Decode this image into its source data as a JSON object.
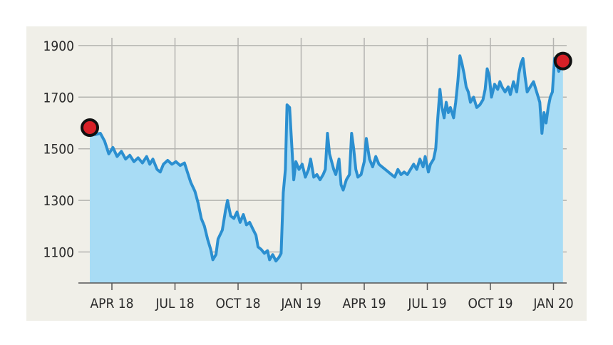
{
  "chart_data": {
    "type": "area",
    "title": "",
    "xlabel": "",
    "ylabel": "",
    "ylim": [
      980,
      1930
    ],
    "y_ticks": [
      1100,
      1300,
      1500,
      1700,
      1900
    ],
    "x_ticks": [
      "APR 18",
      "JUL 18",
      "OCT 18",
      "JAN 19",
      "APR 19",
      "JUL 19",
      "OCT 19",
      "JAN 20"
    ],
    "grid": true,
    "line_color": "#2b8fd0",
    "fill_color": "#a8dcf5",
    "marker_color": "#d72027",
    "series": [
      {
        "values": [
          [
            0,
            1582
          ],
          [
            0.25,
            1555
          ],
          [
            0.5,
            1560
          ],
          [
            0.7,
            1530
          ],
          [
            0.9,
            1480
          ],
          [
            1.1,
            1505
          ],
          [
            1.3,
            1470
          ],
          [
            1.5,
            1490
          ],
          [
            1.7,
            1460
          ],
          [
            1.9,
            1475
          ],
          [
            2.1,
            1450
          ],
          [
            2.3,
            1465
          ],
          [
            2.5,
            1445
          ],
          [
            2.7,
            1470
          ],
          [
            2.85,
            1440
          ],
          [
            3.0,
            1460
          ],
          [
            3.2,
            1420
          ],
          [
            3.35,
            1410
          ],
          [
            3.5,
            1440
          ],
          [
            3.7,
            1455
          ],
          [
            3.9,
            1440
          ],
          [
            4.1,
            1450
          ],
          [
            4.3,
            1435
          ],
          [
            4.5,
            1445
          ],
          [
            4.6,
            1420
          ],
          [
            4.8,
            1370
          ],
          [
            5.0,
            1335
          ],
          [
            5.15,
            1290
          ],
          [
            5.3,
            1230
          ],
          [
            5.45,
            1200
          ],
          [
            5.6,
            1150
          ],
          [
            5.75,
            1110
          ],
          [
            5.85,
            1070
          ],
          [
            6.0,
            1090
          ],
          [
            6.1,
            1150
          ],
          [
            6.3,
            1185
          ],
          [
            6.45,
            1260
          ],
          [
            6.55,
            1300
          ],
          [
            6.7,
            1240
          ],
          [
            6.85,
            1230
          ],
          [
            7.0,
            1255
          ],
          [
            7.15,
            1215
          ],
          [
            7.3,
            1245
          ],
          [
            7.45,
            1205
          ],
          [
            7.6,
            1215
          ],
          [
            7.75,
            1190
          ],
          [
            7.9,
            1165
          ],
          [
            8.0,
            1120
          ],
          [
            8.15,
            1110
          ],
          [
            8.3,
            1095
          ],
          [
            8.45,
            1105
          ],
          [
            8.55,
            1070
          ],
          [
            8.7,
            1090
          ],
          [
            8.85,
            1065
          ],
          [
            9.0,
            1080
          ],
          [
            9.1,
            1095
          ],
          [
            9.2,
            1330
          ],
          [
            9.3,
            1420
          ],
          [
            9.38,
            1670
          ],
          [
            9.5,
            1660
          ],
          [
            9.6,
            1520
          ],
          [
            9.7,
            1380
          ],
          [
            9.8,
            1450
          ],
          [
            9.95,
            1420
          ],
          [
            10.1,
            1440
          ],
          [
            10.25,
            1390
          ],
          [
            10.4,
            1420
          ],
          [
            10.5,
            1460
          ],
          [
            10.65,
            1390
          ],
          [
            10.8,
            1400
          ],
          [
            10.95,
            1380
          ],
          [
            11.1,
            1400
          ],
          [
            11.2,
            1420
          ],
          [
            11.3,
            1560
          ],
          [
            11.4,
            1480
          ],
          [
            11.5,
            1450
          ],
          [
            11.6,
            1420
          ],
          [
            11.7,
            1400
          ],
          [
            11.85,
            1460
          ],
          [
            11.95,
            1360
          ],
          [
            12.05,
            1340
          ],
          [
            12.2,
            1380
          ],
          [
            12.35,
            1400
          ],
          [
            12.45,
            1560
          ],
          [
            12.55,
            1500
          ],
          [
            12.65,
            1420
          ],
          [
            12.75,
            1390
          ],
          [
            12.9,
            1400
          ],
          [
            13.05,
            1450
          ],
          [
            13.15,
            1540
          ],
          [
            13.3,
            1460
          ],
          [
            13.45,
            1430
          ],
          [
            13.6,
            1470
          ],
          [
            13.75,
            1440
          ],
          [
            13.9,
            1430
          ],
          [
            14.05,
            1420
          ],
          [
            14.2,
            1410
          ],
          [
            14.35,
            1400
          ],
          [
            14.5,
            1390
          ],
          [
            14.65,
            1420
          ],
          [
            14.8,
            1400
          ],
          [
            14.95,
            1410
          ],
          [
            15.1,
            1400
          ],
          [
            15.25,
            1420
          ],
          [
            15.4,
            1440
          ],
          [
            15.55,
            1420
          ],
          [
            15.7,
            1460
          ],
          [
            15.85,
            1430
          ],
          [
            15.95,
            1470
          ],
          [
            16.1,
            1410
          ],
          [
            16.2,
            1440
          ],
          [
            16.35,
            1460
          ],
          [
            16.45,
            1500
          ],
          [
            16.55,
            1620
          ],
          [
            16.65,
            1730
          ],
          [
            16.75,
            1660
          ],
          [
            16.85,
            1620
          ],
          [
            16.95,
            1680
          ],
          [
            17.05,
            1640
          ],
          [
            17.15,
            1660
          ],
          [
            17.3,
            1620
          ],
          [
            17.4,
            1680
          ],
          [
            17.5,
            1760
          ],
          [
            17.6,
            1860
          ],
          [
            17.7,
            1830
          ],
          [
            17.8,
            1790
          ],
          [
            17.9,
            1740
          ],
          [
            18.0,
            1720
          ],
          [
            18.1,
            1680
          ],
          [
            18.25,
            1700
          ],
          [
            18.4,
            1660
          ],
          [
            18.55,
            1670
          ],
          [
            18.7,
            1690
          ],
          [
            18.8,
            1730
          ],
          [
            18.9,
            1810
          ],
          [
            19.0,
            1780
          ],
          [
            19.1,
            1700
          ],
          [
            19.25,
            1750
          ],
          [
            19.4,
            1730
          ],
          [
            19.5,
            1760
          ],
          [
            19.6,
            1740
          ],
          [
            19.75,
            1720
          ],
          [
            19.9,
            1740
          ],
          [
            20.0,
            1710
          ],
          [
            20.15,
            1760
          ],
          [
            20.3,
            1720
          ],
          [
            20.4,
            1790
          ],
          [
            20.5,
            1830
          ],
          [
            20.6,
            1850
          ],
          [
            20.7,
            1780
          ],
          [
            20.8,
            1720
          ],
          [
            20.95,
            1740
          ],
          [
            21.1,
            1760
          ],
          [
            21.25,
            1720
          ],
          [
            21.4,
            1680
          ],
          [
            21.5,
            1560
          ],
          [
            21.6,
            1640
          ],
          [
            21.7,
            1600
          ],
          [
            21.8,
            1660
          ],
          [
            21.9,
            1700
          ],
          [
            22.0,
            1720
          ],
          [
            22.1,
            1850
          ],
          [
            22.2,
            1830
          ],
          [
            22.3,
            1800
          ],
          [
            22.4,
            1820
          ],
          [
            22.5,
            1840
          ]
        ]
      }
    ],
    "markers": [
      [
        0,
        1582
      ],
      [
        22.5,
        1840
      ]
    ]
  }
}
